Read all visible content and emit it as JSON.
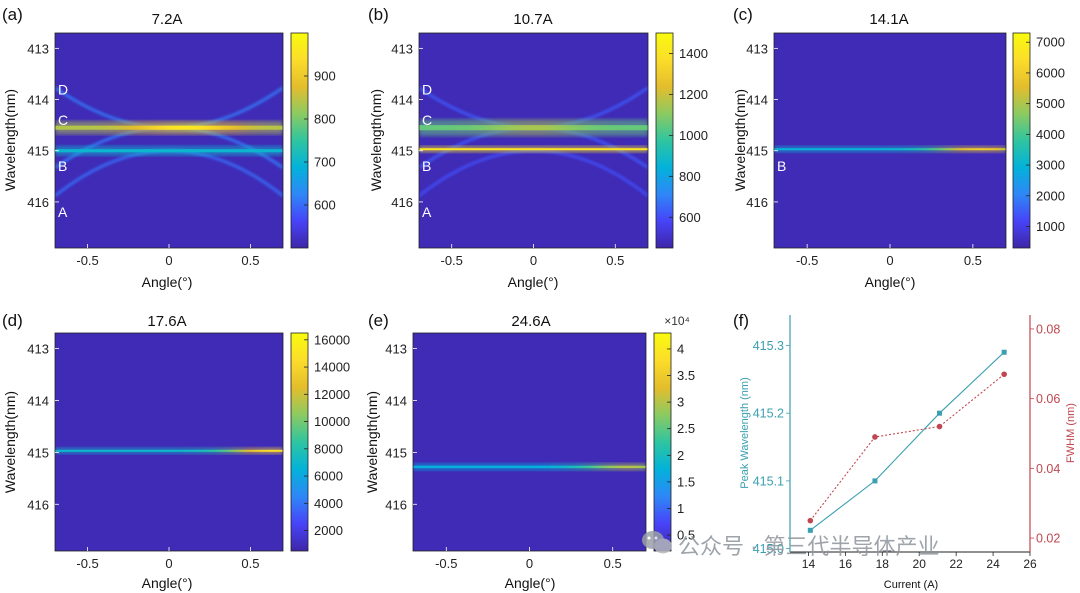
{
  "colormap": [
    "#3e26a8",
    "#4743f8",
    "#2e87f7",
    "#03b2da",
    "#2fc5a0",
    "#8cca61",
    "#e4bd2c",
    "#fbdd2a",
    "#f9fb0e"
  ],
  "heatmaps": [
    {
      "letter": "(a)",
      "title": "7.2A",
      "xlabel": "Angle(°)",
      "ylabel": "Wavelength(nm)",
      "xticks": [
        "-0.5",
        "0",
        "0.5"
      ],
      "xtick_values": [
        -0.5,
        0,
        0.5
      ],
      "yticks": [
        "413",
        "414",
        "415",
        "416"
      ],
      "ytick_values": [
        413,
        414,
        415,
        416
      ],
      "xlim": [
        -0.7,
        0.7
      ],
      "ylim": [
        412.7,
        416.9
      ],
      "colorbar": {
        "min": 500,
        "max": 1000,
        "ticks": [
          "600",
          "700",
          "800",
          "900"
        ],
        "tick_values": [
          600,
          700,
          800,
          900
        ],
        "exponent": ""
      },
      "mode_labels": [
        {
          "text": "D",
          "wavelength": 413.8
        },
        {
          "text": "C",
          "wavelength": 414.4
        },
        {
          "text": "B",
          "wavelength": 415.3
        },
        {
          "text": "A",
          "wavelength": 416.2
        }
      ],
      "bands": [
        {
          "wavelength": 414.55,
          "width": 0.08,
          "intensity": 840,
          "peak_angle": 0.1,
          "peak_gain": 120
        },
        {
          "wavelength": 415.0,
          "width": 0.06,
          "intensity": 700,
          "peak_angle": 0.0,
          "peak_gain": 0
        }
      ],
      "dispersion_curves": [
        {
          "center": 414.55,
          "curvature": 1.6,
          "sign": -1,
          "intensity": 610
        },
        {
          "center": 414.55,
          "curvature": 1.6,
          "sign": 1,
          "intensity": 610
        },
        {
          "center": 415.0,
          "curvature": 1.8,
          "sign": 1,
          "intensity": 600
        }
      ]
    },
    {
      "letter": "(b)",
      "title": "10.7A",
      "xlabel": "Angle(°)",
      "ylabel": "Wavelength(nm)",
      "xticks": [
        "-0.5",
        "0",
        "0.5"
      ],
      "xtick_values": [
        -0.5,
        0,
        0.5
      ],
      "yticks": [
        "413",
        "414",
        "415",
        "416"
      ],
      "ytick_values": [
        413,
        414,
        415,
        416
      ],
      "xlim": [
        -0.7,
        0.7
      ],
      "ylim": [
        412.7,
        416.9
      ],
      "colorbar": {
        "min": 450,
        "max": 1500,
        "ticks": [
          "600",
          "800",
          "1000",
          "1200",
          "1400"
        ],
        "tick_values": [
          600,
          800,
          1000,
          1200,
          1400
        ],
        "exponent": ""
      },
      "mode_labels": [
        {
          "text": "D",
          "wavelength": 413.8
        },
        {
          "text": "C",
          "wavelength": 414.4
        },
        {
          "text": "B",
          "wavelength": 415.3
        },
        {
          "text": "A",
          "wavelength": 416.2
        }
      ],
      "bands": [
        {
          "wavelength": 414.55,
          "width": 0.1,
          "intensity": 1050,
          "peak_angle": 0.0,
          "peak_gain": 100
        },
        {
          "wavelength": 414.97,
          "width": 0.025,
          "intensity": 1400,
          "peak_angle": 0.0,
          "peak_gain": 0
        }
      ],
      "dispersion_curves": [
        {
          "center": 414.55,
          "curvature": 1.6,
          "sign": -1,
          "intensity": 620
        },
        {
          "center": 414.55,
          "curvature": 1.6,
          "sign": 1,
          "intensity": 620
        },
        {
          "center": 415.0,
          "curvature": 1.8,
          "sign": 1,
          "intensity": 600
        }
      ]
    },
    {
      "letter": "(c)",
      "title": "14.1A",
      "xlabel": "Angle(°)",
      "ylabel": "Wavelength(nm)",
      "xticks": [
        "-0.5",
        "0",
        "0.5"
      ],
      "xtick_values": [
        -0.5,
        0,
        0.5
      ],
      "yticks": [
        "413",
        "414",
        "415",
        "416"
      ],
      "ytick_values": [
        413,
        414,
        415,
        416
      ],
      "xlim": [
        -0.7,
        0.7
      ],
      "ylim": [
        412.7,
        416.9
      ],
      "colorbar": {
        "min": 300,
        "max": 7300,
        "ticks": [
          "1000",
          "2000",
          "3000",
          "4000",
          "5000",
          "6000",
          "7000"
        ],
        "tick_values": [
          1000,
          2000,
          3000,
          4000,
          5000,
          6000,
          7000
        ],
        "exponent": ""
      },
      "mode_labels": [
        {
          "text": "B",
          "wavelength": 415.3
        }
      ],
      "bands": [
        {
          "wavelength": 414.97,
          "width": 0.02,
          "intensity": 3000,
          "peak_angle": 0.55,
          "peak_gain": 3000
        }
      ],
      "dispersion_curves": []
    },
    {
      "letter": "(d)",
      "title": "17.6A",
      "xlabel": "Angle(°)",
      "ylabel": "Wavelength(nm)",
      "xticks": [
        "-0.5",
        "0",
        "0.5"
      ],
      "xtick_values": [
        -0.5,
        0,
        0.5
      ],
      "yticks": [
        "413",
        "414",
        "415",
        "416"
      ],
      "ytick_values": [
        413,
        414,
        415,
        416
      ],
      "xlim": [
        -0.7,
        0.7
      ],
      "ylim": [
        412.7,
        416.9
      ],
      "colorbar": {
        "min": 500,
        "max": 16500,
        "ticks": [
          "2000",
          "4000",
          "6000",
          "8000",
          "10000",
          "12000",
          "14000",
          "16000"
        ],
        "tick_values": [
          2000,
          4000,
          6000,
          8000,
          10000,
          12000,
          14000,
          16000
        ],
        "exponent": ""
      },
      "mode_labels": [],
      "bands": [
        {
          "wavelength": 414.97,
          "width": 0.035,
          "intensity": 7000,
          "peak_angle": 0.65,
          "peak_gain": 7500
        }
      ],
      "dispersion_curves": []
    },
    {
      "letter": "(e)",
      "title": "24.6A",
      "xlabel": "Angle(°)",
      "ylabel": "Wavelength(nm)",
      "xticks": [
        "-0.5",
        "0",
        "0.5"
      ],
      "xtick_values": [
        -0.5,
        0,
        0.5
      ],
      "yticks": [
        "413",
        "414",
        "415",
        "416"
      ],
      "ytick_values": [
        413,
        414,
        415,
        416
      ],
      "xlim": [
        -0.7,
        0.7
      ],
      "ylim": [
        412.7,
        416.9
      ],
      "colorbar": {
        "min": 0.2,
        "max": 4.3,
        "ticks": [
          "0.5",
          "1",
          "1.5",
          "2",
          "2.5",
          "3",
          "3.5",
          "4"
        ],
        "tick_values": [
          0.5,
          1,
          1.5,
          2,
          2.5,
          3,
          3.5,
          4
        ],
        "exponent": "×10⁴"
      },
      "mode_labels": [],
      "bands": [
        {
          "wavelength": 415.28,
          "width": 0.045,
          "intensity": 1.7,
          "peak_angle": 0.6,
          "peak_gain": 1.3
        }
      ],
      "dispersion_curves": []
    }
  ],
  "chart_data": [
    {
      "type": "heatmap",
      "panel": "(a)",
      "title": "7.2A",
      "xlabel": "Angle(°)",
      "ylabel": "Wavelength(nm)",
      "xlim": [
        -0.7,
        0.7
      ],
      "ylim": [
        412.7,
        416.9
      ],
      "colorbar_range": [
        500,
        1000
      ],
      "modes": [
        "D",
        "C",
        "B",
        "A"
      ]
    },
    {
      "type": "heatmap",
      "panel": "(b)",
      "title": "10.7A",
      "xlabel": "Angle(°)",
      "ylabel": "Wavelength(nm)",
      "xlim": [
        -0.7,
        0.7
      ],
      "ylim": [
        412.7,
        416.9
      ],
      "colorbar_range": [
        450,
        1500
      ],
      "modes": [
        "D",
        "C",
        "B",
        "A"
      ]
    },
    {
      "type": "heatmap",
      "panel": "(c)",
      "title": "14.1A",
      "xlabel": "Angle(°)",
      "ylabel": "Wavelength(nm)",
      "xlim": [
        -0.7,
        0.7
      ],
      "ylim": [
        412.7,
        416.9
      ],
      "colorbar_range": [
        300,
        7300
      ],
      "modes": [
        "B"
      ]
    },
    {
      "type": "heatmap",
      "panel": "(d)",
      "title": "17.6A",
      "xlabel": "Angle(°)",
      "ylabel": "Wavelength(nm)",
      "xlim": [
        -0.7,
        0.7
      ],
      "ylim": [
        412.7,
        416.9
      ],
      "colorbar_range": [
        500,
        16500
      ]
    },
    {
      "type": "heatmap",
      "panel": "(e)",
      "title": "24.6A",
      "xlabel": "Angle(°)",
      "ylabel": "Wavelength(nm)",
      "xlim": [
        -0.7,
        0.7
      ],
      "ylim": [
        412.7,
        416.9
      ],
      "colorbar_range": [
        0.2,
        4.3
      ],
      "colorbar_exponent": "×10⁴"
    },
    {
      "type": "line",
      "panel": "(f)",
      "xlabel": "Current (A)",
      "xlim": [
        13,
        26
      ],
      "xticks": [
        "14",
        "16",
        "18",
        "20",
        "22",
        "24",
        "26"
      ],
      "xtick_values": [
        14,
        16,
        18,
        20,
        22,
        24,
        26
      ],
      "y_left": {
        "label": "Peak Wavelength (nm)",
        "color": "#3a9fb0",
        "lim": [
          414.995,
          415.345
        ],
        "ticks": [
          "415.0",
          "415.1",
          "415.2",
          "415.3"
        ],
        "tick_values": [
          415.0,
          415.1,
          415.2,
          415.3
        ]
      },
      "y_right": {
        "label": "FWHM (nm)",
        "color": "#c0474f",
        "lim": [
          0.016,
          0.084
        ],
        "ticks": [
          "0.02",
          "0.04",
          "0.06",
          "0.08"
        ],
        "tick_values": [
          0.02,
          0.04,
          0.06,
          0.08
        ]
      },
      "series": [
        {
          "axis": "left",
          "color": "#3a9fb0",
          "style": "solid",
          "x": [
            14.1,
            17.6,
            21.1,
            24.6
          ],
          "y": [
            415.027,
            415.1,
            415.2,
            415.29
          ]
        },
        {
          "axis": "right",
          "color": "#c0474f",
          "style": "dotted",
          "x": [
            14.1,
            17.6,
            21.1,
            24.6
          ],
          "y": [
            0.025,
            0.049,
            0.052,
            0.067
          ]
        }
      ]
    }
  ],
  "watermark": {
    "text": "公众号 · 第三代半导体产业"
  }
}
